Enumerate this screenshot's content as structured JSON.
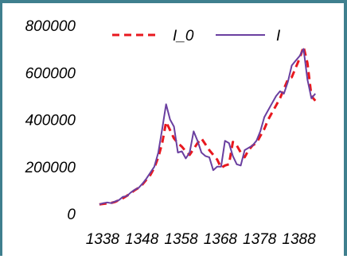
{
  "chart_data": {
    "type": "line",
    "title": "",
    "xlabel": "",
    "ylabel": "",
    "x_tick_labels": [
      "1338",
      "1348",
      "1358",
      "1368",
      "1378",
      "1388"
    ],
    "y_tick_labels": [
      "0",
      "200000",
      "400000",
      "600000",
      "800000"
    ],
    "ylim": [
      0,
      800000
    ],
    "xlim": [
      1336,
      1396
    ],
    "grid": false,
    "legend": "top",
    "series": [
      {
        "name": "I_0",
        "color": "#e8181f",
        "style": "dashed",
        "x": [
          1338,
          1339,
          1340,
          1341,
          1342,
          1343,
          1344,
          1345,
          1346,
          1347,
          1348,
          1349,
          1350,
          1351,
          1352,
          1353,
          1354,
          1355,
          1356,
          1357,
          1358,
          1359,
          1360,
          1361,
          1362,
          1363,
          1364,
          1365,
          1366,
          1367,
          1368,
          1369,
          1370,
          1371,
          1372,
          1373,
          1374,
          1375,
          1376,
          1377,
          1378,
          1379,
          1380,
          1381,
          1382,
          1383,
          1384,
          1385,
          1386,
          1387,
          1388,
          1389,
          1390,
          1391,
          1392,
          1393
        ],
        "y": [
          40000,
          42000,
          44000,
          46000,
          50000,
          58000,
          66000,
          76000,
          88000,
          100000,
          110000,
          125000,
          145000,
          165000,
          195000,
          240000,
          300000,
          390000,
          355000,
          320000,
          300000,
          285000,
          265000,
          250000,
          275000,
          300000,
          320000,
          295000,
          270000,
          250000,
          230000,
          195000,
          205000,
          210000,
          305000,
          290000,
          260000,
          240000,
          270000,
          290000,
          300000,
          330000,
          360000,
          400000,
          430000,
          460000,
          490000,
          530000,
          570000,
          580000,
          620000,
          660000,
          710000,
          640000,
          500000,
          480000
        ]
      },
      {
        "name": "I",
        "color": "#6a3fa0",
        "style": "solid",
        "x": [
          1338,
          1339,
          1340,
          1341,
          1342,
          1343,
          1344,
          1345,
          1346,
          1347,
          1348,
          1349,
          1350,
          1351,
          1352,
          1353,
          1354,
          1355,
          1356,
          1357,
          1358,
          1359,
          1360,
          1361,
          1362,
          1363,
          1364,
          1365,
          1366,
          1367,
          1368,
          1369,
          1370,
          1371,
          1372,
          1373,
          1374,
          1375,
          1376,
          1377,
          1378,
          1379,
          1380,
          1381,
          1382,
          1383,
          1384,
          1385,
          1386,
          1387,
          1388,
          1389,
          1390,
          1391,
          1392,
          1393
        ],
        "y": [
          40000,
          45000,
          48000,
          45000,
          52000,
          58000,
          72000,
          75000,
          90000,
          102000,
          110000,
          128000,
          150000,
          175000,
          200000,
          260000,
          360000,
          465000,
          400000,
          370000,
          260000,
          265000,
          235000,
          260000,
          350000,
          310000,
          260000,
          245000,
          240000,
          185000,
          200000,
          200000,
          310000,
          300000,
          245000,
          210000,
          205000,
          270000,
          280000,
          290000,
          310000,
          350000,
          410000,
          440000,
          470000,
          500000,
          520000,
          510000,
          560000,
          630000,
          650000,
          670000,
          700000,
          570000,
          490000,
          510000
        ]
      }
    ]
  }
}
